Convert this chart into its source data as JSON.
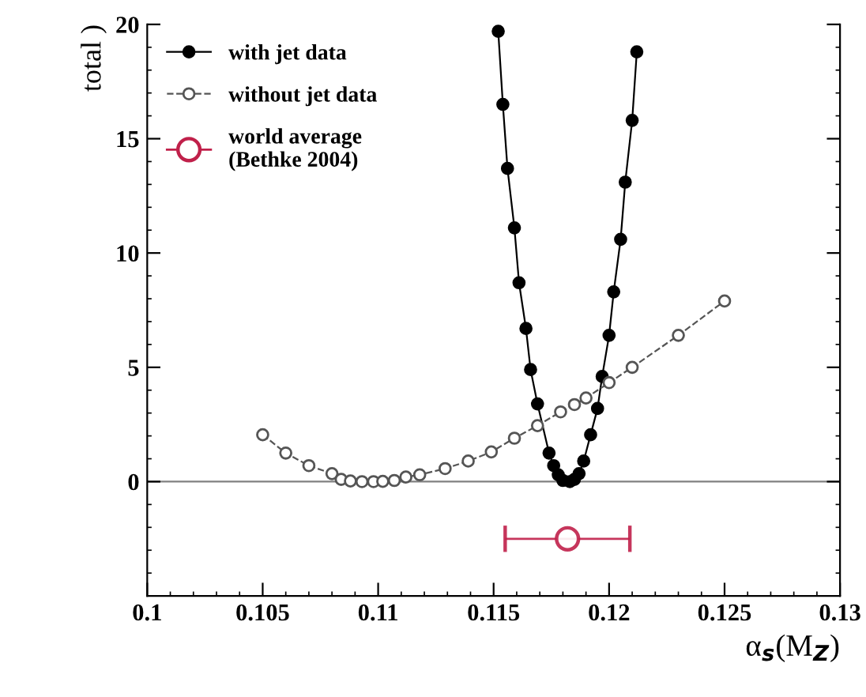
{
  "chart_data": {
    "type": "line",
    "xlabel": "α$_{s}$(M$_{Z}$)",
    "ylabel": "total )",
    "xlim": [
      0.1,
      0.13
    ],
    "ylim": [
      -5,
      20
    ],
    "xticks": [
      {
        "value": 0.1,
        "label": "0.1"
      },
      {
        "value": 0.105,
        "label": "0.105"
      },
      {
        "value": 0.11,
        "label": "0.11"
      },
      {
        "value": 0.115,
        "label": "0.115"
      },
      {
        "value": 0.12,
        "label": "0.12"
      },
      {
        "value": 0.125,
        "label": "0.125"
      },
      {
        "value": 0.13,
        "label": "0.13"
      }
    ],
    "yticks": [
      0,
      5,
      10,
      15,
      20
    ],
    "ref_lines": [
      {
        "axis": "y",
        "value": 0,
        "color": "#808080"
      }
    ],
    "legend": "top left",
    "grid": false,
    "series": [
      {
        "name": "with jet data",
        "marker": "circle",
        "line_style": "solid",
        "color": "#000000",
        "x": [
          0.1152,
          0.1154,
          0.1156,
          0.1159,
          0.1161,
          0.1164,
          0.1166,
          0.1169,
          0.1174,
          0.1176,
          0.1178,
          0.118,
          0.1183,
          0.1185,
          0.1187,
          0.1189,
          0.1192,
          0.1195,
          0.1197,
          0.12,
          0.1202,
          0.1205,
          0.1207,
          0.121,
          0.1212
        ],
        "values": [
          19.7,
          16.5,
          13.7,
          11.1,
          8.7,
          6.7,
          4.9,
          3.4,
          1.25,
          0.7,
          0.3,
          0.05,
          0,
          0.1,
          0.35,
          0.9,
          2.05,
          3.2,
          4.6,
          6.4,
          8.3,
          10.6,
          13.1,
          15.8,
          18.8
        ]
      },
      {
        "name": "without jet data",
        "marker": "circle",
        "line_style": "dashed",
        "color": "#555555",
        "x": [
          0.105,
          0.106,
          0.107,
          0.108,
          0.1084,
          0.1088,
          0.1093,
          0.1098,
          0.1102,
          0.1107,
          0.1112,
          0.1118,
          0.1129,
          0.1139,
          0.1149,
          0.1159,
          0.1169,
          0.1179,
          0.1185,
          0.119,
          0.12,
          0.121,
          0.123,
          0.125
        ],
        "values": [
          2.05,
          1.25,
          0.7,
          0.35,
          0.1,
          0.03,
          0,
          0,
          0.01,
          0.05,
          0.2,
          0.3,
          0.57,
          0.9,
          1.3,
          1.9,
          2.45,
          3.05,
          3.37,
          3.66,
          4.33,
          5.0,
          6.4,
          7.9
        ]
      },
      {
        "name": "world average\n(Bethke 2004)",
        "type": "scatter",
        "marker": "circle",
        "color": "#c0204a",
        "x": [
          0.1182
        ],
        "values": [
          -2.5
        ],
        "xerrors": [
          0.0027
        ]
      }
    ]
  }
}
